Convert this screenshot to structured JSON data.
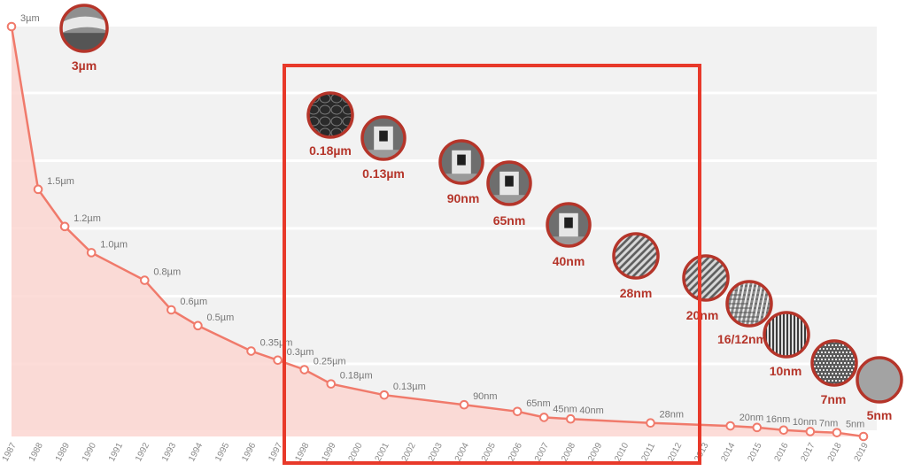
{
  "chart_data": {
    "type": "area",
    "categories": [
      "1987",
      "1988",
      "1989",
      "1990",
      "1991",
      "1992",
      "1993",
      "1994",
      "1995",
      "1996",
      "1997",
      "1998",
      "1999",
      "2000",
      "2001",
      "2002",
      "2003",
      "2004",
      "2005",
      "2006",
      "2007",
      "2008",
      "2009",
      "2010",
      "2011",
      "2012",
      "2013",
      "2014",
      "2015",
      "2016",
      "2017",
      "2018",
      "2019"
    ],
    "series": [
      {
        "points": [
          {
            "year": "1987",
            "value_um": 3.0,
            "label": "3µm"
          },
          {
            "year": "1988",
            "value_um": 1.5,
            "label": "1.5µm"
          },
          {
            "year": "1989",
            "value_um": 1.2,
            "label": "1.2µm"
          },
          {
            "year": "1990",
            "value_um": 1.0,
            "label": "1.0µm"
          },
          {
            "year": "1992",
            "value_um": 0.8,
            "label": "0.8µm"
          },
          {
            "year": "1993",
            "value_um": 0.6,
            "label": "0.6µm"
          },
          {
            "year": "1994",
            "value_um": 0.5,
            "label": "0.5µm"
          },
          {
            "year": "1996",
            "value_um": 0.35,
            "label": "0.35µm"
          },
          {
            "year": "1997",
            "value_um": 0.3,
            "label": "0.3µm"
          },
          {
            "year": "1998",
            "value_um": 0.25,
            "label": "0.25µm"
          },
          {
            "year": "1999",
            "value_um": 0.18,
            "label": "0.18µm"
          },
          {
            "year": "2001",
            "value_um": 0.13,
            "label": "0.13µm"
          },
          {
            "year": "2004",
            "value_um": 0.09,
            "label": "90nm"
          },
          {
            "year": "2006",
            "value_um": 0.065,
            "label": "65nm"
          },
          {
            "year": "2007",
            "value_um": 0.045,
            "label": "45nm"
          },
          {
            "year": "2008",
            "value_um": 0.04,
            "label": "40nm"
          },
          {
            "year": "2011",
            "value_um": 0.028,
            "label": "28nm"
          },
          {
            "year": "2014",
            "value_um": 0.02,
            "label": "20nm"
          },
          {
            "year": "2015",
            "value_um": 0.016,
            "label": "16nm"
          },
          {
            "year": "2016",
            "value_um": 0.01,
            "label": "10nm"
          },
          {
            "year": "2017",
            "value_um": 0.007,
            "label": "7nm"
          },
          {
            "year": "2018",
            "value_um": 0.005,
            "label": "5nm"
          },
          {
            "year": "2019",
            "value_um": 0.0
          }
        ]
      }
    ],
    "ylim": [
      0,
      3
    ],
    "grid": true,
    "process_nodes": [
      {
        "label": "3µm",
        "pattern": "layer"
      },
      {
        "label": "0.18µm",
        "pattern": "cells"
      },
      {
        "label": "0.13µm",
        "pattern": "gate"
      },
      {
        "label": "90nm",
        "pattern": "gate"
      },
      {
        "label": "65nm",
        "pattern": "gate"
      },
      {
        "label": "40nm",
        "pattern": "gate"
      },
      {
        "label": "28nm",
        "pattern": "fins"
      },
      {
        "label": "20nm",
        "pattern": "fins"
      },
      {
        "label": "16/12nm",
        "pattern": "mesh"
      },
      {
        "label": "10nm",
        "pattern": "lines"
      },
      {
        "label": "7nm",
        "pattern": "dots"
      },
      {
        "label": "5nm",
        "pattern": "plain"
      }
    ],
    "highlight": {
      "color": "#e8392a"
    },
    "colors": {
      "line": "#f07a6b",
      "area": "#fbd6d1",
      "node_ring": "#b5352a",
      "node_label": "#b5352a",
      "grid_band": "#f2f2f2"
    }
  }
}
